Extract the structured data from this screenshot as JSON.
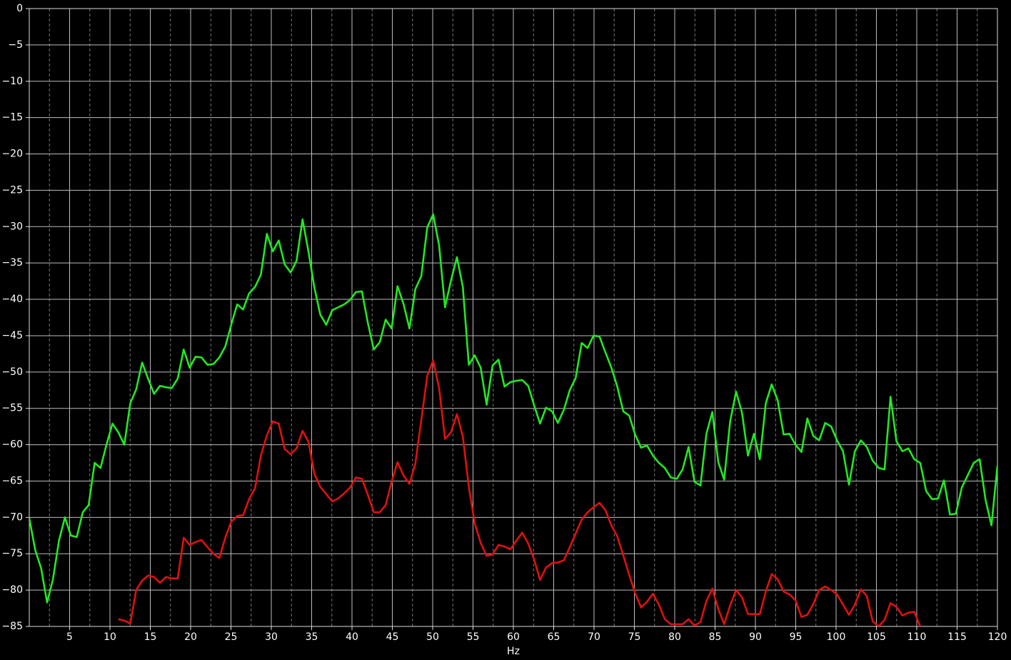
{
  "chart_data": {
    "type": "line",
    "xlabel": "Hz",
    "xlim": [
      0,
      120
    ],
    "xticks": [
      5,
      10,
      15,
      20,
      25,
      30,
      35,
      40,
      45,
      50,
      55,
      60,
      65,
      70,
      75,
      80,
      85,
      90,
      95,
      100,
      105,
      110,
      115,
      120
    ],
    "ylim": [
      -85,
      0
    ],
    "yticks": [
      0,
      {
        "value": -5,
        "label": "−5"
      },
      {
        "value": -10,
        "label": "−10"
      },
      {
        "value": -15,
        "label": "−15"
      },
      {
        "value": -20,
        "label": "−20"
      },
      {
        "value": -25,
        "label": "−25"
      },
      {
        "value": -30,
        "label": "−30"
      },
      {
        "value": -35,
        "label": "−35"
      },
      {
        "value": -40,
        "label": "−40"
      },
      {
        "value": -45,
        "label": "−45"
      },
      {
        "value": -50,
        "label": "−50"
      },
      {
        "value": -55,
        "label": "−55"
      },
      {
        "value": -60,
        "label": "−60"
      },
      {
        "value": -65,
        "label": "−65"
      },
      {
        "value": -70,
        "label": "−70"
      },
      {
        "value": -75,
        "label": "−75"
      },
      {
        "value": -80,
        "label": "−80"
      },
      {
        "value": -85,
        "label": "−85"
      }
    ],
    "grid": true,
    "minor_grid": true,
    "x": [
      0,
      0.74,
      1.47,
      2.21,
      2.94,
      3.68,
      4.42,
      5.15,
      5.89,
      6.63,
      7.36,
      8.1,
      8.83,
      9.57,
      10.31,
      11.04,
      11.78,
      12.52,
      13.25,
      13.99,
      14.72,
      15.46,
      16.2,
      16.93,
      17.67,
      18.4,
      19.14,
      19.88,
      20.61,
      21.35,
      22.09,
      22.82,
      23.56,
      24.29,
      25.03,
      25.77,
      26.5,
      27.24,
      27.98,
      28.71,
      29.45,
      30.18,
      30.92,
      31.66,
      32.39,
      33.13,
      33.87,
      34.6,
      35.34,
      36.07,
      36.81,
      37.55,
      38.28,
      39.02,
      39.75,
      40.49,
      41.23,
      41.96,
      42.7,
      43.44,
      44.17,
      44.91,
      45.64,
      46.38,
      47.12,
      47.85,
      48.59,
      49.33,
      50.06,
      50.8,
      51.53,
      52.27,
      53.01,
      53.74,
      54.48,
      55.21,
      55.95,
      56.69,
      57.42,
      58.16,
      58.9,
      59.63,
      60.37,
      61.1,
      61.84,
      62.58,
      63.31,
      64.05,
      64.79,
      65.52,
      66.26,
      66.99,
      67.73,
      68.47,
      69.2,
      69.94,
      70.67,
      71.41,
      72.15,
      72.88,
      73.62,
      74.36,
      75.09,
      75.83,
      76.56,
      77.3,
      78.04,
      78.77,
      79.51,
      80.25,
      80.98,
      81.72,
      82.45,
      83.19,
      83.93,
      84.66,
      85.4,
      86.13,
      86.87,
      87.61,
      88.34,
      89.08,
      89.82,
      90.55,
      91.29,
      92.02,
      92.76,
      93.5,
      94.23,
      94.97,
      95.71,
      96.44,
      97.18,
      97.91,
      98.65,
      99.39,
      100.12,
      100.86,
      101.6,
      102.33,
      103.07,
      103.8,
      104.54,
      105.28,
      106.01,
      106.75,
      107.48,
      108.22,
      108.96,
      109.69,
      110.43,
      111.17,
      111.9,
      112.64,
      113.37,
      114.11,
      114.85,
      115.58,
      116.32,
      117.06,
      117.79,
      118.53,
      119.26,
      120.0
    ],
    "series": [
      {
        "color": "#22e822",
        "values": [
          -70.1,
          -74.5,
          -77,
          -81.7,
          -78.5,
          -73.2,
          -70,
          -72.5,
          -72.7,
          -69.3,
          -68.3,
          -62.5,
          -63.2,
          -60,
          -57.1,
          -58.3,
          -60,
          -54.3,
          -52.4,
          -48.7,
          -50.9,
          -53,
          -51.9,
          -52.1,
          -52.2,
          -50.9,
          -46.9,
          -49.4,
          -47.9,
          -48,
          -49,
          -48.9,
          -48,
          -46.5,
          -43.5,
          -40.7,
          -41.4,
          -39.2,
          -38.3,
          -36.6,
          -31,
          -33.4,
          -31.9,
          -35.2,
          -36.3,
          -34.7,
          -29,
          -33.4,
          -38.4,
          -42.1,
          -43.5,
          -41.5,
          -41.1,
          -40.7,
          -40.1,
          -39,
          -38.9,
          -43.2,
          -46.9,
          -45.9,
          -42.8,
          -44,
          -38.2,
          -40.6,
          -44,
          -38.6,
          -36.8,
          -30.1,
          -28.3,
          -32.6,
          -41.1,
          -37.4,
          -34.2,
          -38.3,
          -49,
          -47.7,
          -49.4,
          -54.5,
          -49.1,
          -48.3,
          -52,
          -51.4,
          -51.2,
          -51.1,
          -51.9,
          -54.6,
          -57.1,
          -54.9,
          -55.4,
          -57,
          -55.2,
          -52.5,
          -50.8,
          -46,
          -46.7,
          -45,
          -45.1,
          -47.3,
          -49.4,
          -52,
          -55.4,
          -56,
          -58.6,
          -60.4,
          -60.1,
          -61.5,
          -62.5,
          -63.2,
          -64.5,
          -64.7,
          -63.4,
          -60.3,
          -65.1,
          -65.6,
          -58.5,
          -55.5,
          -62.4,
          -64.8,
          -56.8,
          -52.7,
          -55.6,
          -61.5,
          -58.5,
          -62,
          -54.3,
          -51.7,
          -53.9,
          -58.6,
          -58.5,
          -60,
          -61,
          -56.4,
          -58.8,
          -59.4,
          -57,
          -57.5,
          -59.4,
          -60.9,
          -65.5,
          -60.9,
          -59.4,
          -60.3,
          -62.2,
          -63.2,
          -63.4,
          -53.4,
          -59.5,
          -60.9,
          -60.5,
          -62,
          -62.5,
          -66.4,
          -67.5,
          -67.4,
          -64.9,
          -69.6,
          -69.5,
          -65.9,
          -64.2,
          -62.5,
          -62,
          -67.6,
          -71.1,
          -62.9
        ]
      },
      {
        "color": "#e01010",
        "values": [
          null,
          null,
          null,
          null,
          null,
          null,
          null,
          null,
          null,
          null,
          null,
          null,
          null,
          null,
          null,
          -84,
          -84.2,
          -84.6,
          -80,
          -78.7,
          -78,
          -78.2,
          -79,
          -78.2,
          -78.4,
          -78.4,
          -72.8,
          -73.8,
          -73.4,
          -73.1,
          -74.1,
          -75,
          -75.6,
          -72.8,
          -70.6,
          -69.8,
          -69.7,
          -67.5,
          -66,
          -61.5,
          -58.7,
          -56.8,
          -57.1,
          -60.6,
          -61.3,
          -60.5,
          -58.1,
          -59.6,
          -64,
          -65.8,
          -66.8,
          -67.8,
          -67.4,
          -66.7,
          -65.9,
          -64.5,
          -64.7,
          -66.9,
          -69.3,
          -69.3,
          -68.3,
          -65.1,
          -62.4,
          -64.2,
          -65.4,
          -62.6,
          -56.6,
          -50.5,
          -48.4,
          -52.2,
          -59.2,
          -58.3,
          -55.8,
          -58.9,
          -65.8,
          -70.8,
          -73.5,
          -75.3,
          -75.1,
          -73.8,
          -74,
          -74.4,
          -73.2,
          -72.1,
          -73.6,
          -75.8,
          -78.6,
          -76.9,
          -76.3,
          -76.2,
          -75.9,
          -74.1,
          -72.2,
          -70.3,
          -69.3,
          -68.6,
          -68,
          -69,
          -71.1,
          -72.6,
          -75.2,
          -77.9,
          -80.4,
          -82.4,
          -81.6,
          -80.5,
          -82,
          -84,
          -84.7,
          -84.7,
          -84.7,
          -84,
          -84.9,
          -84.4,
          -81.5,
          -79.8,
          -82.6,
          -84.7,
          -82.1,
          -80,
          -81,
          -83.3,
          -83.3,
          -83.3,
          -80.2,
          -77.8,
          -78.5,
          -80.2,
          -80.6,
          -81.4,
          -83.7,
          -83.4,
          -81.9,
          -80,
          -79.5,
          -80,
          -80.6,
          -82,
          -83.4,
          -82,
          -79.9,
          -80.8,
          -84.3,
          -85,
          -84.1,
          -81.8,
          -82.3,
          -83.5,
          -83.1,
          -83,
          -85,
          null,
          null,
          null,
          null,
          null,
          null,
          null,
          null,
          null,
          null,
          null,
          null,
          null
        ]
      }
    ]
  }
}
